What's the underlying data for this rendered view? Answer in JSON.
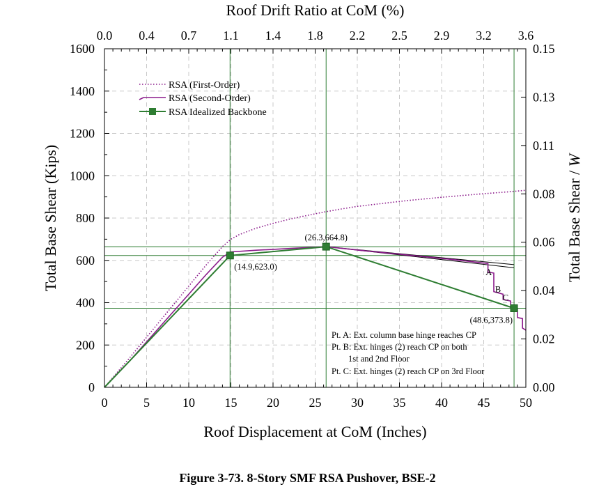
{
  "figure": {
    "caption": "Figure 3-73.  8-Story SMF RSA Pushover, BSE-2"
  },
  "chart_data": {
    "type": "line",
    "xlabel": "Roof Displacement at CoM (Inches)",
    "ylabel": "Total Base Shear (Kips)",
    "x2label": "Roof Drift Ratio at CoM (%)",
    "y2label_main": "Total Base Shear / ",
    "y2label_italic": "W",
    "xlim": [
      0,
      50
    ],
    "ylim": [
      0,
      1600
    ],
    "x2lim": [
      0.0,
      3.6
    ],
    "y2lim": [
      0.0,
      0.15
    ],
    "x_ticks": [
      "0",
      "5",
      "10",
      "15",
      "20",
      "25",
      "30",
      "35",
      "40",
      "45",
      "50"
    ],
    "y_ticks": [
      "0",
      "200",
      "400",
      "600",
      "800",
      "1000",
      "1200",
      "1400",
      "1600"
    ],
    "x2_ticks": [
      "0.0",
      "0.4",
      "0.7",
      "1.1",
      "1.4",
      "1.8",
      "2.2",
      "2.5",
      "2.9",
      "3.2",
      "3.6"
    ],
    "y2_ticks": [
      "0.00",
      "0.02",
      "0.04",
      "0.06",
      "0.08",
      "0.11",
      "0.13",
      "0.15"
    ],
    "grid": true,
    "legend_position": "top-left",
    "series": [
      {
        "name": "RSA (First-Order)",
        "style": "dotted",
        "color": "#8b1a8b",
        "x": [
          0,
          3,
          6,
          9,
          12,
          14,
          15,
          16,
          18,
          20,
          22,
          24,
          26,
          28,
          30,
          33,
          36,
          40,
          44,
          48,
          50
        ],
        "y": [
          0,
          140,
          285,
          430,
          575,
          665,
          700,
          722,
          752,
          775,
          795,
          812,
          828,
          842,
          855,
          869,
          883,
          898,
          912,
          924,
          931
        ]
      },
      {
        "name": "RSA (Second-Order)",
        "style": "solid",
        "color": "#8b1a8b",
        "x": [
          0,
          3,
          6,
          9,
          12,
          14,
          15,
          18,
          22,
          26.3,
          30,
          34,
          38,
          42,
          45.5,
          45.5,
          46.2,
          46.2,
          47.3,
          47.3,
          48.2,
          48.2,
          49,
          49,
          49.6,
          49.6,
          50
        ],
        "y": [
          0,
          125,
          260,
          395,
          530,
          615,
          640,
          648,
          656,
          664.8,
          649,
          633,
          617,
          601,
          585,
          545,
          540,
          452,
          440,
          415,
          408,
          375,
          370,
          330,
          325,
          280,
          270
        ]
      },
      {
        "name": "RSA Idealized Backbone",
        "style": "solid-square-markers",
        "color": "#2e7d32",
        "x": [
          0,
          14.9,
          26.3,
          48.6
        ],
        "y": [
          0,
          623.0,
          664.8,
          373.8
        ]
      }
    ],
    "reference_lines": [
      {
        "x": [
          26.3,
          48.6
        ],
        "y": [
          664.8,
          580
        ]
      },
      {
        "x": [
          26.3,
          48.6
        ],
        "y": [
          664.8,
          565
        ]
      }
    ],
    "guide_lines": {
      "horizontal": [
        664.8,
        623.0,
        373.8
      ],
      "vertical": [
        14.9,
        26.3,
        48.6
      ]
    },
    "point_labels": [
      {
        "text": "(14.9,623.0)",
        "x": 14.9,
        "y": 623.0
      },
      {
        "text": "(26.3,664.8)",
        "x": 26.3,
        "y": 664.8
      },
      {
        "text": "(48.6,373.8)",
        "x": 48.6,
        "y": 373.8
      }
    ],
    "letter_marks": [
      {
        "text": "A",
        "x": 45.6,
        "y": 530
      },
      {
        "text": "B",
        "x": 46.7,
        "y": 450
      },
      {
        "text": "C",
        "x": 47.6,
        "y": 410
      }
    ],
    "notes": [
      "Pt. A: Ext. column base hinge reaches CP",
      "Pt. B: Ext. hinges (2) reach CP on both",
      "1st and 2nd Floor",
      "Pt. C: Ext. hinges (2) reach CP on 3rd Floor"
    ]
  }
}
